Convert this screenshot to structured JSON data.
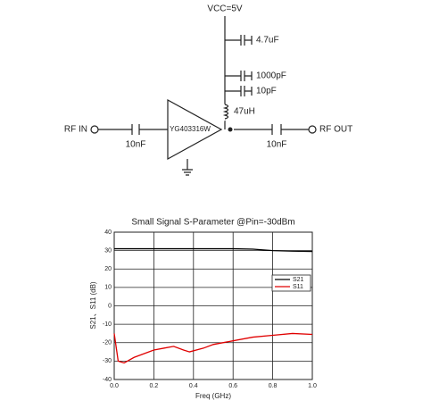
{
  "circuit": {
    "supply": "VCC=5V",
    "capacitors": [
      "4.7uF",
      "1000pF",
      "10pF"
    ],
    "inductor": "47uH",
    "amplifier": "YG403316W",
    "input": "RF IN",
    "output": "RF OUT",
    "input_cap": "10nF",
    "output_cap": "10nF"
  },
  "chart_data": {
    "type": "line",
    "title": "Small Signal S-Parameter @Pin=-30dBm",
    "x_label": "Freq (GHz)",
    "y_label": "S21、S11 (dB)",
    "x": [
      0,
      0.02,
      0.05,
      0.1,
      0.15,
      0.2,
      0.25,
      0.3,
      0.35,
      0.38,
      0.45,
      0.5,
      0.6,
      0.7,
      0.8,
      0.9,
      1.0
    ],
    "series": [
      {
        "name": "S21",
        "color": "#000000",
        "values": [
          31,
          31,
          31,
          31,
          31,
          31,
          31,
          31,
          31,
          31,
          31,
          31,
          31,
          30.8,
          30,
          29.7,
          29.5
        ]
      },
      {
        "name": "S11",
        "color": "#e00000",
        "values": [
          -15,
          -30,
          -31,
          -28,
          -26,
          -24,
          -23,
          -22,
          -24,
          -25,
          -23,
          -21,
          -19,
          -17,
          -16,
          -15,
          -15.5
        ]
      }
    ],
    "xlim": [
      0,
      1
    ],
    "ylim": [
      -40,
      40
    ],
    "xticks": [
      {
        "value": 0,
        "label": "0.0"
      },
      0.2,
      0.4,
      0.6,
      0.8,
      {
        "value": 1,
        "label": "1.0"
      }
    ],
    "yticks": [
      -40,
      -30,
      -20,
      -10,
      0,
      10,
      20,
      30,
      40
    ],
    "grid": true
  }
}
